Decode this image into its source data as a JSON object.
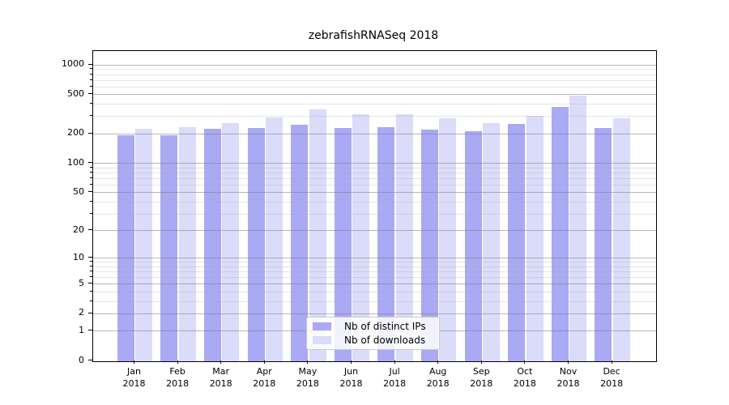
{
  "title": "zebrafishRNASeq 2018",
  "chart_data": {
    "type": "bar",
    "title": "zebrafishRNASeq 2018",
    "categories": [
      "Jan 2018",
      "Feb 2018",
      "Mar 2018",
      "Apr 2018",
      "May 2018",
      "Jun 2018",
      "Jul 2018",
      "Aug 2018",
      "Sep 2018",
      "Oct 2018",
      "Nov 2018",
      "Dec 2018"
    ],
    "series": [
      {
        "name": "Nb of distinct IPs",
        "color": "#a9a9f4",
        "values": [
          195,
          195,
          227,
          231,
          246,
          228,
          234,
          220,
          211,
          251,
          377,
          228
        ]
      },
      {
        "name": "Nb of downloads",
        "color": "#dbdbfa",
        "values": [
          226,
          232,
          256,
          292,
          356,
          318,
          319,
          286,
          259,
          305,
          492,
          286
        ]
      }
    ],
    "xlabel": "",
    "ylabel": "",
    "y_scale": "log(1+x)",
    "y_ticks": [
      0,
      1,
      2,
      5,
      10,
      20,
      50,
      100,
      200,
      500,
      1000
    ],
    "y_minor_ticks": [
      3,
      4,
      6,
      7,
      8,
      9,
      30,
      40,
      60,
      70,
      80,
      90,
      300,
      400,
      600,
      700,
      800,
      900
    ],
    "ylim": [
      0,
      1380
    ],
    "grid": "horizontal major+minor, drawn over bars",
    "legend_position": "lower center inside axes"
  }
}
